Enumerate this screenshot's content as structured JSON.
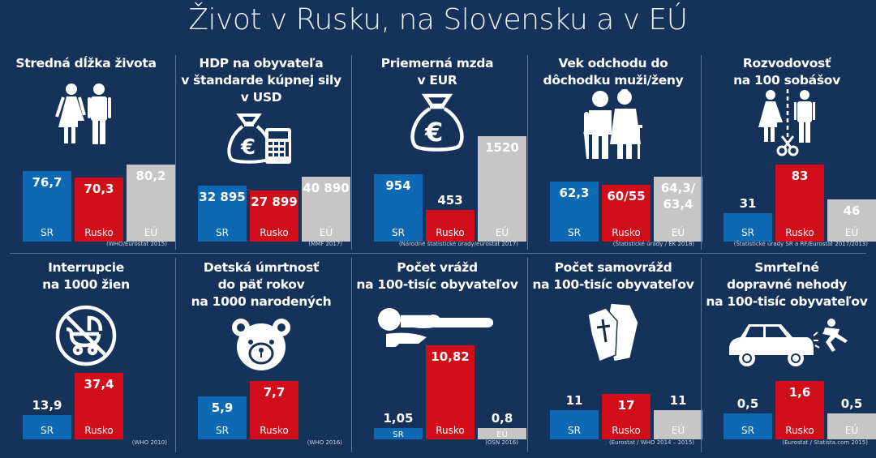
{
  "title": "Život v Rusku, na Slovensku a v EÚ",
  "colors": {
    "background": "#15325a",
    "SR": "#0d69b4",
    "Rusko": "#d10d19",
    "EÚ": "#c6c6c6"
  },
  "chart_data": [
    {
      "type": "bar",
      "title": "Stredná dĺžka života",
      "icon": "couple-icon",
      "categories": [
        "SR",
        "Rusko",
        "EÚ"
      ],
      "values": [
        76.7,
        70.3,
        80.2
      ],
      "labels": [
        "76,7",
        "70,3",
        "80,2"
      ],
      "source": "(WHO/Eurostat 2015)"
    },
    {
      "type": "bar",
      "title": "HDP na obyvateľa\nv štandarde kúpnej sily\nv USD",
      "icon": "money-bag-calculator-icon",
      "categories": [
        "SR",
        "Rusko",
        "EÚ"
      ],
      "values": [
        32895,
        27899,
        40890
      ],
      "labels": [
        "32 895",
        "27 899",
        "40 890"
      ],
      "source": "(MMF 2017)"
    },
    {
      "type": "bar",
      "title": "Priemerná mzda\nv EUR",
      "icon": "money-bag-euro-icon",
      "categories": [
        "SR",
        "Rusko",
        "EÚ"
      ],
      "values": [
        954,
        453,
        1520
      ],
      "labels": [
        "954",
        "453",
        "1520"
      ],
      "source": "(Národné štatistické úrady/eurostat 2017)"
    },
    {
      "type": "bar",
      "title": "Vek odchodu do\ndôchodku muži/ženy",
      "icon": "elderly-couple-icon",
      "categories": [
        "SR",
        "Rusko",
        "EÚ"
      ],
      "values": [
        62.3,
        60,
        64.3
      ],
      "labels": [
        "62,3",
        "60/55",
        "64,3/\n63,4"
      ],
      "source": "(Štatistické úrady / EK 2018)"
    },
    {
      "type": "bar",
      "title": "Rozvodovosť\nna 100 sobášov",
      "icon": "divorce-scissors-icon",
      "categories": [
        "SR",
        "Rusko",
        "EÚ"
      ],
      "values": [
        31,
        83,
        46
      ],
      "labels": [
        "31",
        "83",
        "46"
      ],
      "source": "(Štatistické úrady SR a RF/Eurostat 2017/2013)"
    },
    {
      "type": "bar",
      "title": "Interrupcie\nna 1000 žien",
      "icon": "no-stroller-icon",
      "categories": [
        "SR",
        "Rusko"
      ],
      "values": [
        13.9,
        37.4
      ],
      "labels": [
        "13,9",
        "37,4"
      ],
      "source": "(WHO 2010)"
    },
    {
      "type": "bar",
      "title": "Detská úmrtnosť\ndo päť rokov\nna 1000 narodených",
      "icon": "teddy-bear-icon",
      "categories": [
        "SR",
        "Rusko"
      ],
      "values": [
        5.9,
        7.7
      ],
      "labels": [
        "5,9",
        "7,7"
      ],
      "source": "(WHO 2016)"
    },
    {
      "type": "bar",
      "title": "Počet vrážd\nna 100-tisíc obyvateľov",
      "icon": "victim-body-icon",
      "categories": [
        "SR",
        "Rusko",
        "EÚ"
      ],
      "values": [
        1.05,
        10.82,
        0.8
      ],
      "labels": [
        "1,05",
        "10,82",
        "0,8"
      ],
      "source": "(OSN 2016)"
    },
    {
      "type": "bar",
      "title": "Počet samovrážd\nna 100-tisíc obyvateľov",
      "icon": "coffins-icon",
      "categories": [
        "SR",
        "Rusko",
        "EÚ"
      ],
      "values": [
        11,
        17,
        11
      ],
      "labels": [
        "11",
        "17",
        "11"
      ],
      "source": "(Eurostat / WHO 2014 – 2015)"
    },
    {
      "type": "bar",
      "title": "Smrteľné\ndopravné nehody\nna 100-tisíc obyvateľov",
      "icon": "car-accident-icon",
      "categories": [
        "SR",
        "Rusko",
        "EÚ"
      ],
      "values": [
        0.5,
        1.6,
        0.5
      ],
      "labels": [
        "0,5",
        "1,6",
        "0,5"
      ],
      "source": "(Eurostat / Statista.com 2015)"
    }
  ]
}
